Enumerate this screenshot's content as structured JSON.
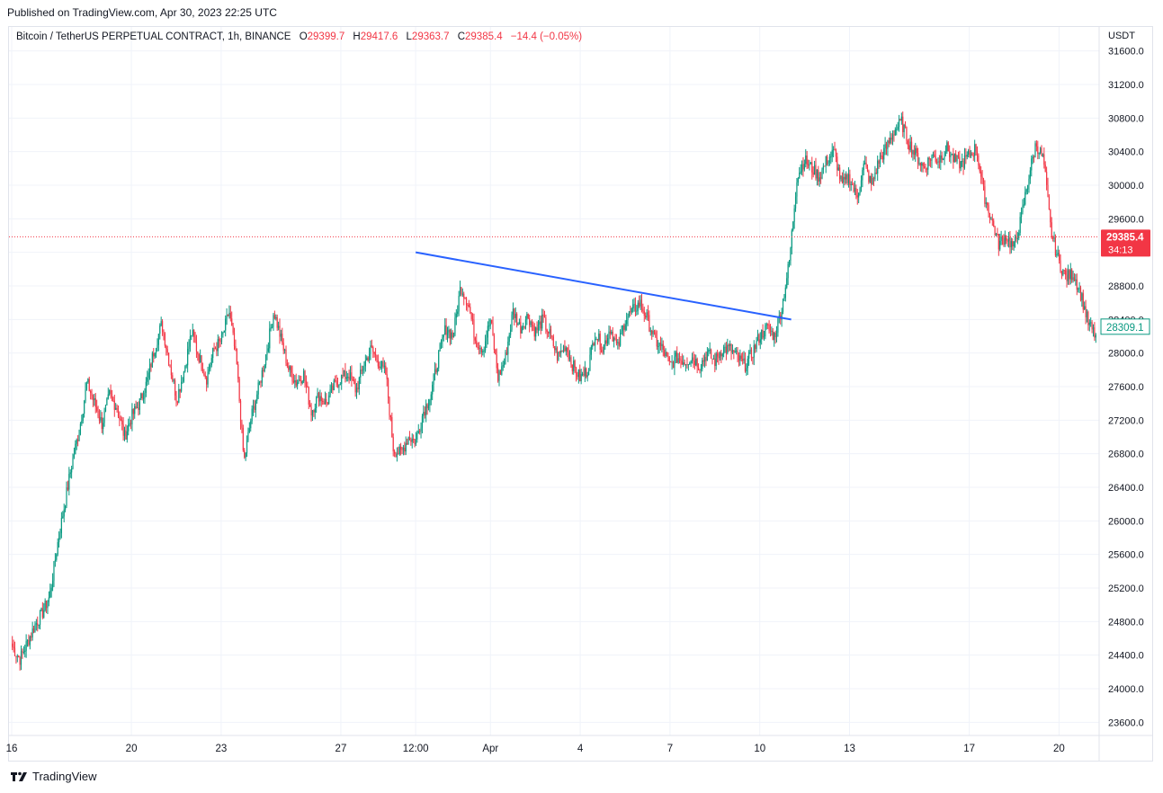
{
  "header": {
    "published": "Published on TradingView.com, Apr 30, 2023 22:25 UTC"
  },
  "legend": {
    "symbol": "Bitcoin / TetherUS PERPETUAL CONTRACT, 1h, BINANCE",
    "o_label": "O",
    "o_value": "29399.7",
    "h_label": "H",
    "h_value": "29417.6",
    "l_label": "L",
    "l_value": "29363.7",
    "c_label": "C",
    "c_value": "29385.4",
    "change": "−14.4 (−0.05%)"
  },
  "price_axis": {
    "currency": "USDT",
    "current_price": "29385.4",
    "countdown": "34:13",
    "marker_price": "28309.1"
  },
  "brand": {
    "name": "TradingView"
  },
  "colors": {
    "up": "#089981",
    "down": "#f23645",
    "trendline": "#2962ff",
    "grid": "#f0f3fa",
    "axis_text": "#131722",
    "price_label_bg": "#f23645",
    "marker_border": "#089981"
  },
  "chart_data": {
    "type": "candlestick",
    "y_ticks": [
      23600,
      24000,
      24400,
      24800,
      25200,
      25600,
      26000,
      26400,
      26800,
      27200,
      27600,
      28000,
      28400,
      28800,
      29200,
      29600,
      30000,
      30400,
      30800,
      31200,
      31600
    ],
    "y_tick_labels": [
      "23600.0",
      "24000.0",
      "24400.0",
      "24800.0",
      "25200.0",
      "25600.0",
      "26000.0",
      "26400.0",
      "26800.0",
      "27200.0",
      "27600.0",
      "28000.0",
      "28400.0",
      "28800.0",
      "29200.0",
      "29600.0",
      "30000.0",
      "30400.0",
      "30800.0",
      "31200.0",
      "31600.0"
    ],
    "ylim": [
      23450,
      31650
    ],
    "x_ticks": [
      {
        "label": "16",
        "day": 0
      },
      {
        "label": "20",
        "day": 4
      },
      {
        "label": "23",
        "day": 7
      },
      {
        "label": "27",
        "day": 11
      },
      {
        "label": "12:00",
        "day": 13.5
      },
      {
        "label": "Apr",
        "day": 16
      },
      {
        "label": "4",
        "day": 19
      },
      {
        "label": "7",
        "day": 22
      },
      {
        "label": "10",
        "day": 25
      },
      {
        "label": "13",
        "day": 28
      },
      {
        "label": "17",
        "day": 32
      },
      {
        "label": "20",
        "day": 35
      }
    ],
    "x_start_label": "16",
    "xlim_days": [
      0,
      36.25
    ],
    "closes": [
      24500,
      24350,
      24550,
      24750,
      24900,
      25100,
      25700,
      26200,
      26700,
      27100,
      27650,
      27400,
      27150,
      27500,
      27350,
      27000,
      27250,
      27400,
      27650,
      28050,
      28350,
      27900,
      27450,
      27800,
      28250,
      27950,
      27700,
      28050,
      28150,
      28500,
      27900,
      26700,
      27250,
      27600,
      28000,
      28500,
      28150,
      27800,
      27650,
      27750,
      27300,
      27500,
      27400,
      27600,
      27700,
      27750,
      27550,
      27850,
      28050,
      27900,
      27750,
      26850,
      26800,
      27000,
      26950,
      27300,
      27500,
      27950,
      28300,
      28200,
      28800,
      28600,
      28150,
      28050,
      28400,
      27700,
      27950,
      28500,
      28300,
      28450,
      28250,
      28400,
      28200,
      27950,
      28100,
      27850,
      27700,
      27800,
      28250,
      28050,
      28300,
      28050,
      28400,
      28500,
      28600,
      28400,
      28150,
      28050,
      27850,
      27950,
      27900,
      27950,
      27850,
      28000,
      27900,
      28050,
      28050,
      27950,
      27850,
      28000,
      28200,
      28300,
      28200,
      28550,
      29100,
      30100,
      30300,
      30200,
      30100,
      30300,
      30400,
      30000,
      30100,
      29850,
      30250,
      30000,
      30300,
      30450,
      30650,
      30750,
      30500,
      30350,
      30200,
      30350,
      30300,
      30450,
      30300,
      30250,
      30350,
      30450,
      29900,
      29600,
      29300,
      29400,
      29250,
      29600,
      30100,
      30500,
      30300,
      29450,
      29100,
      28900,
      28950,
      28700,
      28350,
      28200
    ],
    "trendline": {
      "start": {
        "day": 13.5,
        "price": 29200
      },
      "end": {
        "day": 26.05,
        "price": 28400
      }
    },
    "current_price_line": 29385.4
  }
}
